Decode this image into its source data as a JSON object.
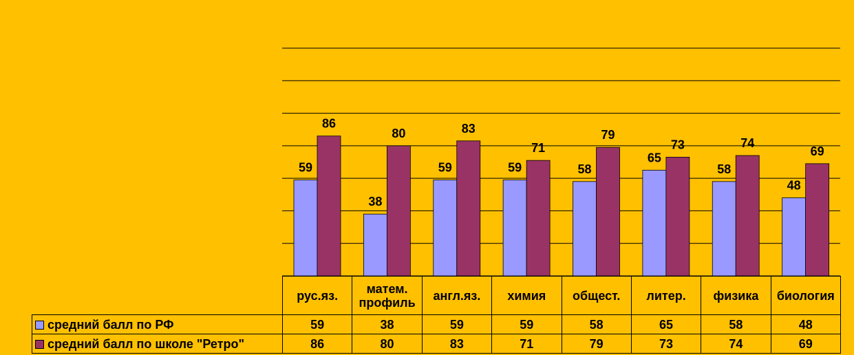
{
  "chart_data": {
    "type": "bar",
    "categories": [
      "рус.яз.",
      "матем. профиль",
      "англ.яз.",
      "химия",
      "общест.",
      "литер.",
      "физика",
      "биология"
    ],
    "series": [
      {
        "name": "средний балл по РФ",
        "color": "#9999ff",
        "values": [
          59,
          38,
          59,
          59,
          58,
          65,
          58,
          48
        ]
      },
      {
        "name": "средний балл по школе \"Ретро\"",
        "color": "#993366",
        "values": [
          86,
          80,
          83,
          71,
          79,
          73,
          74,
          69
        ]
      }
    ],
    "ylim": [
      0,
      140
    ],
    "yticks": [
      0,
      20,
      40,
      60,
      80,
      100,
      120,
      140
    ],
    "grid": true
  }
}
